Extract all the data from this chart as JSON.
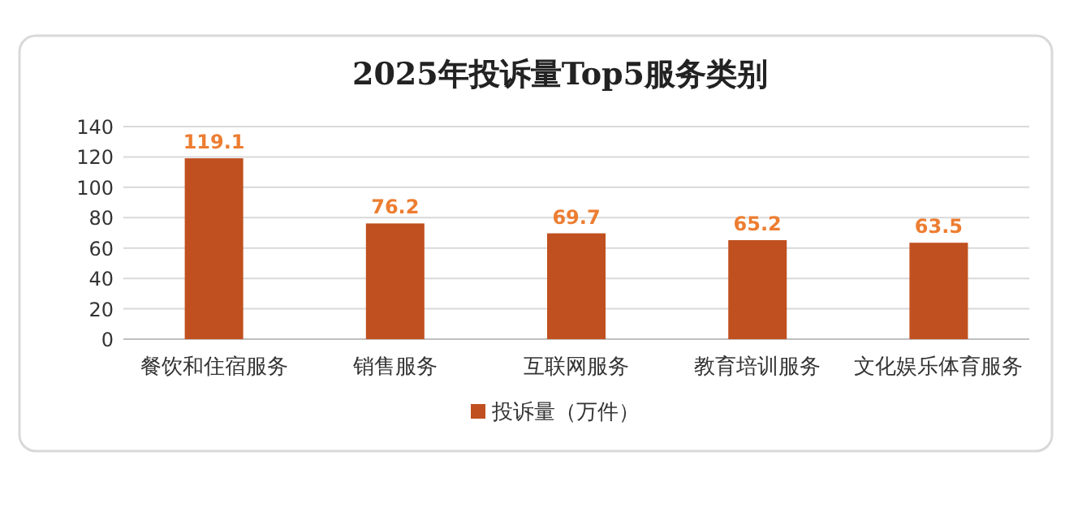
{
  "chart_data": {
    "type": "bar",
    "title": "2025年投诉量Top5服务类别",
    "categories": [
      "餐饮和住宿服务",
      "销售服务",
      "互联网服务",
      "教育培训服务",
      "文化娱乐体育服务"
    ],
    "series": [
      {
        "name": "投诉量（万件）",
        "color": "#c0501f",
        "values": [
          119.1,
          76.2,
          69.7,
          65.2,
          63.5
        ]
      }
    ],
    "ylim": [
      0,
      140
    ],
    "yticks": [
      0,
      20,
      40,
      60,
      80,
      100,
      120,
      140
    ],
    "grid": "y",
    "data_labels": true,
    "legend": "bottom"
  }
}
